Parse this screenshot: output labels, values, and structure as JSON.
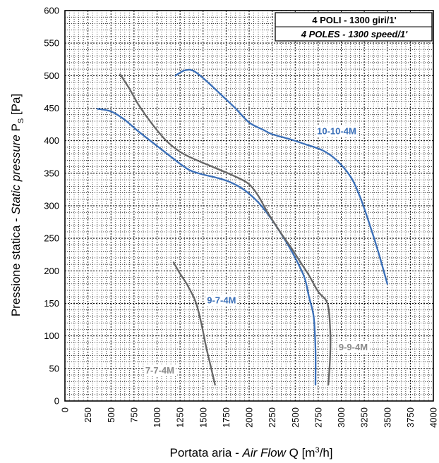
{
  "chart_data": {
    "type": "line",
    "legend": {
      "line1": "4 POLI - 1300 giri/1'",
      "line2": "4 POLES - 1300 speed/1'"
    },
    "xlabel": {
      "prefix": "Portata aria - ",
      "italic": "Air Flow",
      "suffix": " Q [m",
      "sup": "3",
      "end": "/h]"
    },
    "ylabel": {
      "prefix": "Pressione statica - ",
      "italic": "Static pressure",
      "suffix": " P",
      "sub": "S",
      "end": " [Pa]"
    },
    "xlim": [
      0,
      4000
    ],
    "ylim": [
      0,
      600
    ],
    "x_ticks": [
      "0",
      "250",
      "500",
      "750",
      "1000",
      "1250",
      "1500",
      "1750",
      "2000",
      "2250",
      "2500",
      "2750",
      "3000",
      "3250",
      "3500",
      "3750",
      "4000"
    ],
    "y_ticks": [
      "0",
      "50",
      "100",
      "150",
      "200",
      "250",
      "300",
      "350",
      "400",
      "450",
      "500",
      "550",
      "600"
    ],
    "grid": "major and minor, dotted",
    "colors": {
      "blue": "#3a6fb8",
      "gray": "#666666",
      "label_gray": "#8a8a8a"
    },
    "series": [
      {
        "name": "10-10-4M",
        "color": "#3a6fb8",
        "label_color": "#3a6fb8",
        "label_at": [
          2950,
          415
        ],
        "points": [
          [
            1200,
            500
          ],
          [
            1300,
            508
          ],
          [
            1400,
            507
          ],
          [
            1550,
            490
          ],
          [
            1700,
            470
          ],
          [
            1850,
            450
          ],
          [
            2000,
            428
          ],
          [
            2150,
            417
          ],
          [
            2250,
            410
          ],
          [
            2450,
            402
          ],
          [
            2600,
            395
          ],
          [
            2800,
            385
          ],
          [
            2950,
            370
          ],
          [
            3100,
            345
          ],
          [
            3200,
            315
          ],
          [
            3300,
            275
          ],
          [
            3400,
            230
          ],
          [
            3500,
            180
          ]
        ]
      },
      {
        "name": "9-7-4M",
        "color": "#3a6fb8",
        "label_color": "#3a6fb8",
        "label_at": [
          1700,
          155
        ],
        "points": [
          [
            350,
            449
          ],
          [
            500,
            445
          ],
          [
            650,
            432
          ],
          [
            800,
            414
          ],
          [
            1000,
            392
          ],
          [
            1200,
            370
          ],
          [
            1350,
            355
          ],
          [
            1500,
            348
          ],
          [
            1650,
            343
          ],
          [
            1800,
            336
          ],
          [
            1950,
            324
          ],
          [
            2100,
            305
          ],
          [
            2250,
            278
          ],
          [
            2400,
            245
          ],
          [
            2500,
            220
          ],
          [
            2600,
            190
          ],
          [
            2650,
            160
          ],
          [
            2700,
            130
          ],
          [
            2720,
            80
          ],
          [
            2720,
            25
          ]
        ]
      },
      {
        "name": "9-9-4M",
        "color": "#666666",
        "label_color": "#8a8a8a",
        "label_at": [
          3130,
          83
        ],
        "points": [
          [
            600,
            502
          ],
          [
            700,
            480
          ],
          [
            800,
            455
          ],
          [
            950,
            425
          ],
          [
            1100,
            400
          ],
          [
            1250,
            383
          ],
          [
            1400,
            372
          ],
          [
            1600,
            360
          ],
          [
            1850,
            345
          ],
          [
            2000,
            333
          ],
          [
            2100,
            315
          ],
          [
            2200,
            290
          ],
          [
            2350,
            257
          ],
          [
            2450,
            237
          ],
          [
            2550,
            215
          ],
          [
            2650,
            193
          ],
          [
            2750,
            168
          ],
          [
            2850,
            150
          ],
          [
            2880,
            110
          ],
          [
            2880,
            70
          ],
          [
            2860,
            25
          ]
        ]
      },
      {
        "name": "7-7-4M",
        "color": "#666666",
        "label_color": "#8a8a8a",
        "label_at": [
          1030,
          47
        ],
        "points": [
          [
            1180,
            213
          ],
          [
            1240,
            198
          ],
          [
            1330,
            178
          ],
          [
            1420,
            152
          ],
          [
            1480,
            120
          ],
          [
            1530,
            85
          ],
          [
            1580,
            55
          ],
          [
            1630,
            25
          ]
        ]
      }
    ]
  }
}
